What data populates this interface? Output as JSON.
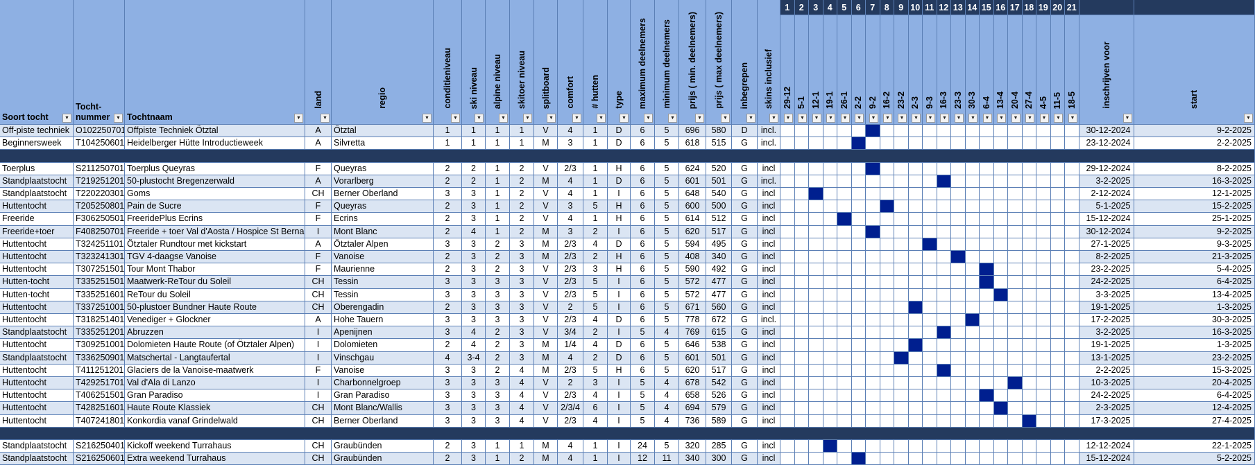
{
  "sheet": {
    "columns": {
      "soort": "Soort tocht",
      "nummer": "Tocht-\nnummer",
      "naam": "Tochtnaam",
      "land": "land",
      "regio": "regio",
      "conditie": "conditieniveau",
      "ski": "ski niveau",
      "alpine": "alpine niveau",
      "skitoer": "skitoer niveau",
      "splitboard": "splitboard",
      "comfort": "comfort",
      "hutten": "# hutten",
      "type": "type",
      "max": "maximum deelnemers",
      "min": "minimum deelnemers",
      "prijs_min": "prijs ( min. deelnemers)",
      "prijs_max": "prijs ( max deelnemers)",
      "inbegrepen": "inbegrepen",
      "skins": "skins inclusief",
      "inschrijven": "inschrijven voor",
      "start": "start"
    },
    "week_numbers": [
      "1",
      "2",
      "3",
      "4",
      "5",
      "6",
      "7",
      "8",
      "9",
      "10",
      "11",
      "12",
      "13",
      "14",
      "15",
      "16",
      "17",
      "18",
      "19",
      "20",
      "21"
    ],
    "week_dates": [
      "29-12",
      "5-1",
      "12-1",
      "19-1",
      "26-1",
      "2-2",
      "9-2",
      "16-2",
      "23-2",
      "2-3",
      "9-3",
      "16-3",
      "23-3",
      "30-3",
      "6-4",
      "13-4",
      "20-4",
      "27-4",
      "4-5",
      "11-5",
      "18-5"
    ],
    "rows": [
      {
        "soort": "Off-piste techniek",
        "nummer": "O102250701",
        "naam": "Offpiste Techniek Ötztal",
        "land": "A",
        "regio": "Ötztal",
        "conditie": "1",
        "ski": "1",
        "alpine": "1",
        "skitoer": "1",
        "splitboard": "V",
        "comfort": "4",
        "hutten": "1",
        "type": "D",
        "max": "6",
        "min": "5",
        "prijs_min": "696",
        "prijs_max": "580",
        "inbegrepen": "D",
        "skins": "incl.",
        "week": 7,
        "inschrijven": "30-12-2024",
        "start": "9-2-2025"
      },
      {
        "soort": "Beginnersweek",
        "nummer": "T104250601",
        "naam": "Heidelberger Hütte Introductieweek",
        "land": "A",
        "regio": "Silvretta",
        "conditie": "1",
        "ski": "1",
        "alpine": "1",
        "skitoer": "1",
        "splitboard": "M",
        "comfort": "3",
        "hutten": "1",
        "type": "D",
        "max": "6",
        "min": "5",
        "prijs_min": "618",
        "prijs_max": "515",
        "inbegrepen": "G",
        "skins": "incl.",
        "week": 6,
        "inschrijven": "23-12-2024",
        "start": "2-2-2025"
      },
      {
        "sep": true
      },
      {
        "soort": "Toerplus",
        "nummer": "S211250701",
        "naam": "Toerplus Queyras",
        "land": "F",
        "regio": "Queyras",
        "conditie": "2",
        "ski": "2",
        "alpine": "1",
        "skitoer": "2",
        "splitboard": "V",
        "comfort": "2/3",
        "hutten": "1",
        "type": "H",
        "max": "6",
        "min": "5",
        "prijs_min": "624",
        "prijs_max": "520",
        "inbegrepen": "G",
        "skins": "incl",
        "week": 7,
        "inschrijven": "29-12-2024",
        "start": "8-2-2025"
      },
      {
        "soort": "Standplaatstocht",
        "nummer": "T219251201",
        "naam": "50-plustocht Bregenzerwald",
        "land": "A",
        "regio": "Vorarlberg",
        "conditie": "2",
        "ski": "2",
        "alpine": "1",
        "skitoer": "2",
        "splitboard": "M",
        "comfort": "4",
        "hutten": "1",
        "type": "D",
        "max": "6",
        "min": "5",
        "prijs_min": "601",
        "prijs_max": "501",
        "inbegrepen": "G",
        "skins": "incl.",
        "week": 12,
        "inschrijven": "3-2-2025",
        "start": "16-3-2025"
      },
      {
        "soort": "Standplaatstocht",
        "nummer": "T220220301",
        "naam": "Goms",
        "land": "CH",
        "regio": "Berner Oberland",
        "conditie": "3",
        "ski": "3",
        "alpine": "1",
        "skitoer": "2",
        "splitboard": "V",
        "comfort": "4",
        "hutten": "1",
        "type": "I",
        "max": "6",
        "min": "5",
        "prijs_min": "648",
        "prijs_max": "540",
        "inbegrepen": "G",
        "skins": "incl",
        "week": 3,
        "inschrijven": "2-12-2024",
        "start": "12-1-2025"
      },
      {
        "soort": "Huttentocht",
        "nummer": "T205250801",
        "naam": "Pain de Sucre",
        "land": "F",
        "regio": "Queyras",
        "conditie": "2",
        "ski": "3",
        "alpine": "1",
        "skitoer": "2",
        "splitboard": "V",
        "comfort": "3",
        "hutten": "5",
        "type": "H",
        "max": "6",
        "min": "5",
        "prijs_min": "600",
        "prijs_max": "500",
        "inbegrepen": "G",
        "skins": "incl",
        "week": 8,
        "inschrijven": "5-1-2025",
        "start": "15-2-2025"
      },
      {
        "soort": "Freeride",
        "nummer": "F306250501",
        "naam": "FreeridePlus Ecrins",
        "land": "F",
        "regio": "Ecrins",
        "conditie": "2",
        "ski": "3",
        "alpine": "1",
        "skitoer": "2",
        "splitboard": "V",
        "comfort": "4",
        "hutten": "1",
        "type": "H",
        "max": "6",
        "min": "5",
        "prijs_min": "614",
        "prijs_max": "512",
        "inbegrepen": "G",
        "skins": "incl",
        "week": 5,
        "inschrijven": "15-12-2024",
        "start": "25-1-2025"
      },
      {
        "soort": "Freeride+toer",
        "nummer": "F408250701",
        "naam": "Freeride + toer Val d'Aosta / Hospice St Bernard",
        "land": "I",
        "regio": "Mont Blanc",
        "conditie": "2",
        "ski": "4",
        "alpine": "1",
        "skitoer": "2",
        "splitboard": "M",
        "comfort": "3",
        "hutten": "2",
        "type": "I",
        "max": "6",
        "min": "5",
        "prijs_min": "620",
        "prijs_max": "517",
        "inbegrepen": "G",
        "skins": "incl",
        "week": 7,
        "inschrijven": "30-12-2024",
        "start": "9-2-2025"
      },
      {
        "soort": "Huttentocht",
        "nummer": "T324251101",
        "naam": "Ötztaler Rundtour met kickstart",
        "land": "A",
        "regio": "Ötztaler Alpen",
        "conditie": "3",
        "ski": "3",
        "alpine": "2",
        "skitoer": "3",
        "splitboard": "M",
        "comfort": "2/3",
        "hutten": "4",
        "type": "D",
        "max": "6",
        "min": "5",
        "prijs_min": "594",
        "prijs_max": "495",
        "inbegrepen": "G",
        "skins": "incl",
        "week": 11,
        "inschrijven": "27-1-2025",
        "start": "9-3-2025"
      },
      {
        "soort": "Huttentocht",
        "nummer": "T323241301",
        "naam": "TGV 4-daagse Vanoise",
        "land": "F",
        "regio": "Vanoise",
        "conditie": "2",
        "ski": "3",
        "alpine": "2",
        "skitoer": "3",
        "splitboard": "M",
        "comfort": "2/3",
        "hutten": "2",
        "type": "H",
        "max": "6",
        "min": "5",
        "prijs_min": "408",
        "prijs_max": "340",
        "inbegrepen": "G",
        "skins": "incl",
        "week": 13,
        "inschrijven": "8-2-2025",
        "start": "21-3-2025"
      },
      {
        "soort": "Huttentocht",
        "nummer": "T307251501",
        "naam": "Tour Mont Thabor",
        "land": "F",
        "regio": "Maurienne",
        "conditie": "2",
        "ski": "3",
        "alpine": "2",
        "skitoer": "3",
        "splitboard": "V",
        "comfort": "2/3",
        "hutten": "3",
        "type": "H",
        "max": "6",
        "min": "5",
        "prijs_min": "590",
        "prijs_max": "492",
        "inbegrepen": "G",
        "skins": "incl",
        "week": 15,
        "inschrijven": "23-2-2025",
        "start": "5-4-2025"
      },
      {
        "soort": "Hutten-tocht",
        "nummer": "T335251501",
        "naam": "Maatwerk-ReTour du Soleil",
        "land": "CH",
        "regio": "Tessin",
        "conditie": "3",
        "ski": "3",
        "alpine": "3",
        "skitoer": "3",
        "splitboard": "V",
        "comfort": "2/3",
        "hutten": "5",
        "type": "I",
        "max": "6",
        "min": "5",
        "prijs_min": "572",
        "prijs_max": "477",
        "inbegrepen": "G",
        "skins": "incl",
        "week": 15,
        "inschrijven": "24-2-2025",
        "start": "6-4-2025"
      },
      {
        "soort": "Hutten-tocht",
        "nummer": "T335251601",
        "naam": "ReTour du Soleil",
        "land": "CH",
        "regio": "Tessin",
        "conditie": "3",
        "ski": "3",
        "alpine": "3",
        "skitoer": "3",
        "splitboard": "V",
        "comfort": "2/3",
        "hutten": "5",
        "type": "I",
        "max": "6",
        "min": "5",
        "prijs_min": "572",
        "prijs_max": "477",
        "inbegrepen": "G",
        "skins": "incl",
        "week": 16,
        "inschrijven": "3-3-2025",
        "start": "13-4-2025"
      },
      {
        "soort": "Huttentocht",
        "nummer": "T337251001",
        "naam": "50-plustoer Bundner Haute Route",
        "land": "CH",
        "regio": "Oberengadin",
        "conditie": "2",
        "ski": "3",
        "alpine": "3",
        "skitoer": "3",
        "splitboard": "V",
        "comfort": "2",
        "hutten": "5",
        "type": "I",
        "max": "6",
        "min": "5",
        "prijs_min": "671",
        "prijs_max": "560",
        "inbegrepen": "G",
        "skins": "incl",
        "week": 10,
        "inschrijven": "19-1-2025",
        "start": "1-3-2025"
      },
      {
        "soort": "Huttentocht",
        "nummer": "T318251401",
        "naam": "Venediger + Glockner",
        "land": "A",
        "regio": "Hohe Tauern",
        "conditie": "3",
        "ski": "3",
        "alpine": "3",
        "skitoer": "3",
        "splitboard": "V",
        "comfort": "2/3",
        "hutten": "4",
        "type": "D",
        "max": "6",
        "min": "5",
        "prijs_min": "778",
        "prijs_max": "672",
        "inbegrepen": "G",
        "skins": "incl.",
        "week": 14,
        "inschrijven": "17-2-2025",
        "start": "30-3-2025"
      },
      {
        "soort": "Standplaatstocht",
        "nummer": "T335251201",
        "naam": "Abruzzen",
        "land": "I",
        "regio": "Apenijnen",
        "conditie": "3",
        "ski": "4",
        "alpine": "2",
        "skitoer": "3",
        "splitboard": "V",
        "comfort": "3/4",
        "hutten": "2",
        "type": "I",
        "max": "5",
        "min": "4",
        "prijs_min": "769",
        "prijs_max": "615",
        "inbegrepen": "G",
        "skins": "incl",
        "week": 12,
        "inschrijven": "3-2-2025",
        "start": "16-3-2025"
      },
      {
        "soort": "Huttentocht",
        "nummer": "T309251001",
        "naam": "Dolomieten Haute Route (of Ötztaler Alpen)",
        "land": "I",
        "regio": "Dolomieten",
        "conditie": "2",
        "ski": "4",
        "alpine": "2",
        "skitoer": "3",
        "splitboard": "M",
        "comfort": "1/4",
        "hutten": "4",
        "type": "D",
        "max": "6",
        "min": "5",
        "prijs_min": "646",
        "prijs_max": "538",
        "inbegrepen": "G",
        "skins": "incl",
        "week": 10,
        "inschrijven": "19-1-2025",
        "start": "1-3-2025"
      },
      {
        "soort": "Standplaatstocht",
        "nummer": "T336250901",
        "naam": "Matschertal - Langtaufertal",
        "land": "I",
        "regio": "Vinschgau",
        "conditie": "4",
        "ski": "3-4",
        "alpine": "2",
        "skitoer": "3",
        "splitboard": "M",
        "comfort": "4",
        "hutten": "2",
        "type": "D",
        "max": "6",
        "min": "5",
        "prijs_min": "601",
        "prijs_max": "501",
        "inbegrepen": "G",
        "skins": "incl",
        "week": 9,
        "inschrijven": "13-1-2025",
        "start": "23-2-2025"
      },
      {
        "soort": "Huttentocht",
        "nummer": "T411251201",
        "naam": "Glaciers de la Vanoise-maatwerk",
        "land": "F",
        "regio": "Vanoise",
        "conditie": "3",
        "ski": "3",
        "alpine": "2",
        "skitoer": "4",
        "splitboard": "M",
        "comfort": "2/3",
        "hutten": "5",
        "type": "H",
        "max": "6",
        "min": "5",
        "prijs_min": "620",
        "prijs_max": "517",
        "inbegrepen": "G",
        "skins": "incl",
        "week": 12,
        "inschrijven": "2-2-2025",
        "start": "15-3-2025"
      },
      {
        "soort": "Huttentocht",
        "nummer": "T429251701",
        "naam": "Val d'Ala di Lanzo",
        "land": "I",
        "regio": "Charbonnelgroep",
        "conditie": "3",
        "ski": "3",
        "alpine": "3",
        "skitoer": "4",
        "splitboard": "V",
        "comfort": "2",
        "hutten": "3",
        "type": "I",
        "max": "5",
        "min": "4",
        "prijs_min": "678",
        "prijs_max": "542",
        "inbegrepen": "G",
        "skins": "incl",
        "week": 17,
        "inschrijven": "10-3-2025",
        "start": "20-4-2025"
      },
      {
        "soort": "Huttentocht",
        "nummer": "T406251501",
        "naam": "Gran Paradiso",
        "land": "I",
        "regio": "Gran Paradiso",
        "conditie": "3",
        "ski": "3",
        "alpine": "3",
        "skitoer": "4",
        "splitboard": "V",
        "comfort": "2/3",
        "hutten": "4",
        "type": "I",
        "max": "5",
        "min": "4",
        "prijs_min": "658",
        "prijs_max": "526",
        "inbegrepen": "G",
        "skins": "incl",
        "week": 15,
        "inschrijven": "24-2-2025",
        "start": "6-4-2025"
      },
      {
        "soort": "Huttentocht",
        "nummer": "T428251601",
        "naam": "Haute Route Klassiek",
        "land": "CH",
        "regio": "Mont Blanc/Wallis",
        "conditie": "3",
        "ski": "3",
        "alpine": "3",
        "skitoer": "4",
        "splitboard": "V",
        "comfort": "2/3/4",
        "hutten": "6",
        "type": "I",
        "max": "5",
        "min": "4",
        "prijs_min": "694",
        "prijs_max": "579",
        "inbegrepen": "G",
        "skins": "incl",
        "week": 16,
        "inschrijven": "2-3-2025",
        "start": "12-4-2025"
      },
      {
        "soort": "Huttentocht",
        "nummer": "T407241801",
        "naam": "Konkordia vanaf Grindelwald",
        "land": "CH",
        "regio": "Berner Oberland",
        "conditie": "3",
        "ski": "3",
        "alpine": "3",
        "skitoer": "4",
        "splitboard": "V",
        "comfort": "2/3",
        "hutten": "4",
        "type": "I",
        "max": "5",
        "min": "4",
        "prijs_min": "736",
        "prijs_max": "589",
        "inbegrepen": "G",
        "skins": "incl",
        "week": 18,
        "inschrijven": "17-3-2025",
        "start": "27-4-2025"
      },
      {
        "sep": true
      },
      {
        "soort": "Standplaatstocht",
        "nummer": "S216250401",
        "naam": "Kickoff weekend Turrahaus",
        "land": "CH",
        "regio": "Graubünden",
        "conditie": "2",
        "ski": "3",
        "alpine": "1",
        "skitoer": "1",
        "splitboard": "M",
        "comfort": "4",
        "hutten": "1",
        "type": "I",
        "max": "24",
        "min": "5",
        "prijs_min": "320",
        "prijs_max": "285",
        "inbegrepen": "G",
        "skins": "incl",
        "week": 4,
        "inschrijven": "12-12-2024",
        "start": "22-1-2025"
      },
      {
        "soort": "Standplaatstocht",
        "nummer": "S216250601",
        "naam": "Extra weekend Turrahaus",
        "land": "CH",
        "regio": "Graubünden",
        "conditie": "2",
        "ski": "3",
        "alpine": "1",
        "skitoer": "2",
        "splitboard": "M",
        "comfort": "4",
        "hutten": "1",
        "type": "I",
        "max": "12",
        "min": "11",
        "prijs_min": "340",
        "prijs_max": "300",
        "inbegrepen": "G",
        "skins": "incl",
        "week": 6,
        "inschrijven": "15-12-2024",
        "start": "5-2-2025"
      }
    ],
    "colors": {
      "header_light": "#8eb0e3",
      "header_dark": "#243a5e",
      "row_alt": "#dbe5f3",
      "week_marker": "#001f8f",
      "grid": "#5b7fb5"
    },
    "icons": {
      "filter": "dropdown-arrow-icon"
    }
  }
}
